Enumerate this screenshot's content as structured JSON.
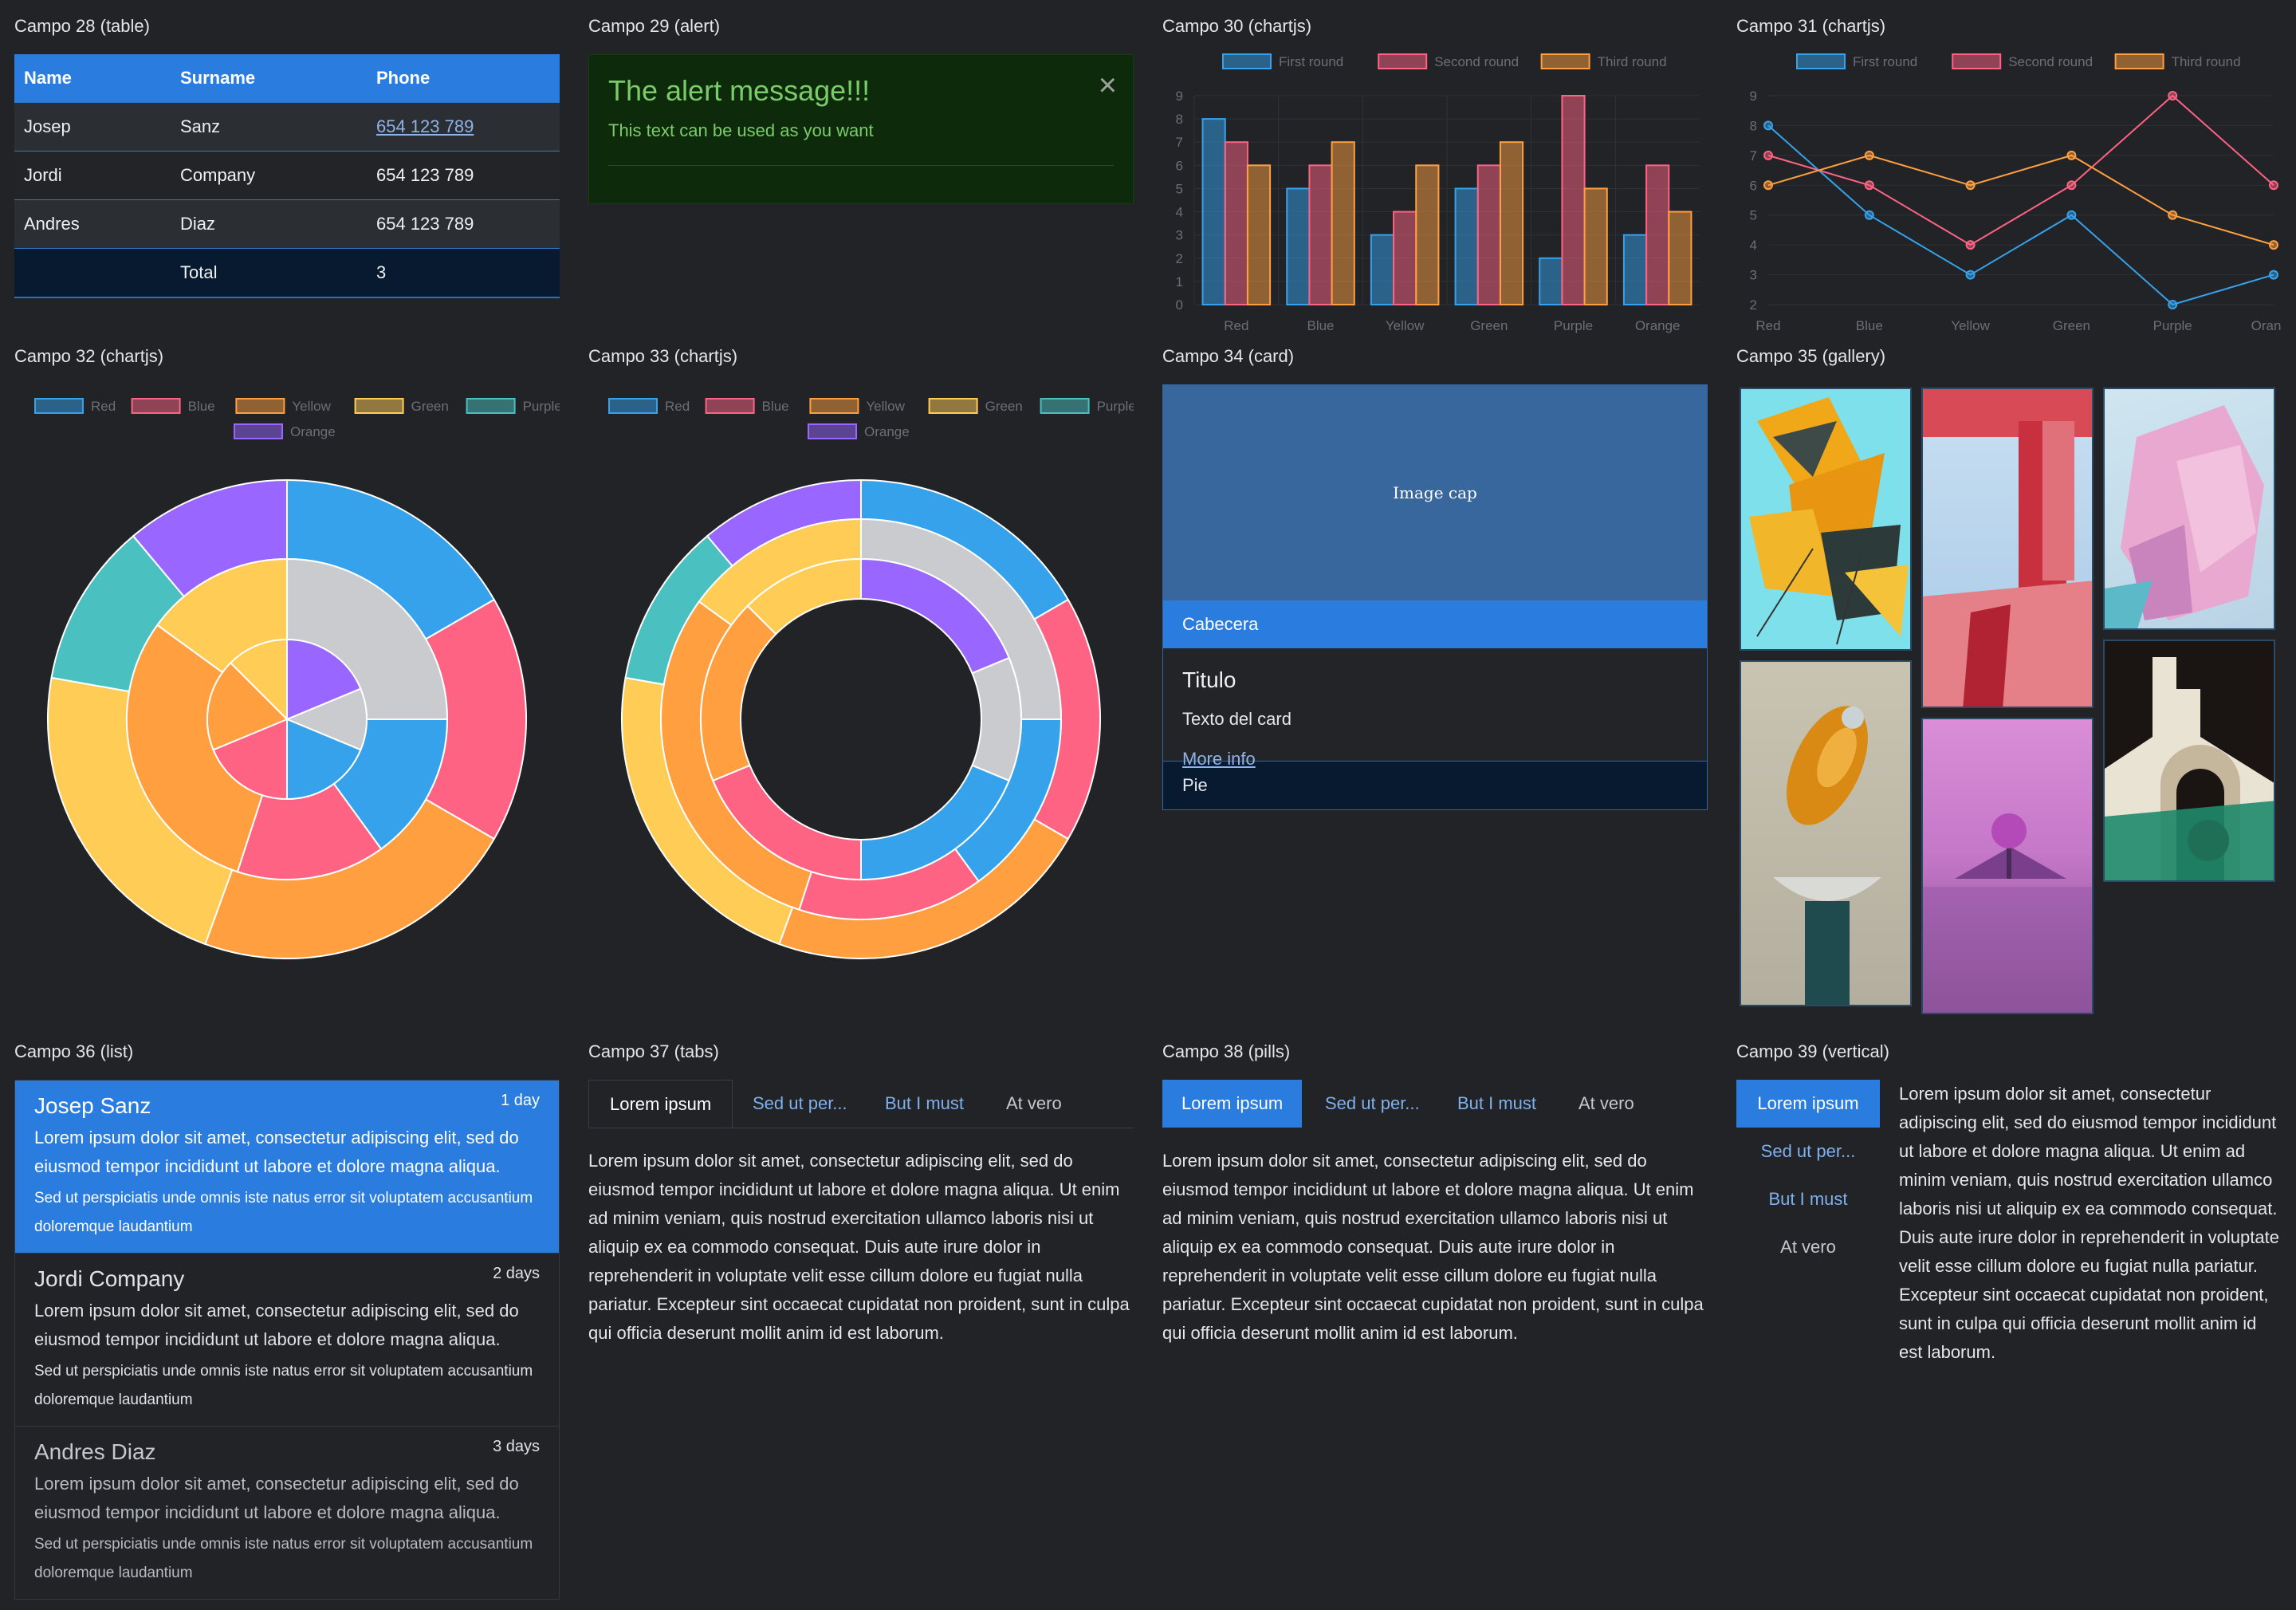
{
  "campo28": {
    "title": "Campo 28 (table)",
    "headers": [
      "Name",
      "Surname",
      "Phone"
    ],
    "rows": [
      {
        "name": "Josep",
        "surname": "Sanz",
        "phone": "654 123 789"
      },
      {
        "name": "Jordi",
        "surname": "Company",
        "phone": "654 123 789"
      },
      {
        "name": "Andres",
        "surname": "Diaz",
        "phone": "654 123 789"
      }
    ],
    "total_label": "Total",
    "total_value": "3"
  },
  "campo29": {
    "title": "Campo 29 (alert)",
    "heading": "The alert message!!!",
    "text": "This text can be used as you want",
    "close": "×"
  },
  "campo30": {
    "title": "Campo 30 (chartjs)",
    "chart_data": {
      "type": "bar",
      "categories": [
        "Red",
        "Blue",
        "Yellow",
        "Green",
        "Purple",
        "Orange"
      ],
      "series": [
        {
          "name": "First round",
          "values": [
            8,
            5,
            3,
            5,
            2,
            3
          ],
          "color": "#36a2eb"
        },
        {
          "name": "Second round",
          "values": [
            7,
            6,
            4,
            6,
            9,
            6
          ],
          "color": "#ff6384"
        },
        {
          "name": "Third round",
          "values": [
            6,
            7,
            6,
            7,
            5,
            4
          ],
          "color": "#ff9f40"
        }
      ],
      "ylim": [
        0,
        9
      ],
      "yticks": [
        0,
        1,
        2,
        3,
        4,
        5,
        6,
        7,
        8,
        9
      ],
      "grid": true,
      "legend": "top"
    }
  },
  "campo31": {
    "title": "Campo 31 (chartjs)",
    "chart_data": {
      "type": "line",
      "categories": [
        "Red",
        "Blue",
        "Yellow",
        "Green",
        "Purple",
        "Orange"
      ],
      "series": [
        {
          "name": "First round",
          "values": [
            8,
            5,
            3,
            5,
            2,
            3
          ],
          "color": "#36a2eb"
        },
        {
          "name": "Second round",
          "values": [
            7,
            6,
            4,
            6,
            9,
            6
          ],
          "color": "#ff6384"
        },
        {
          "name": "Third round",
          "values": [
            6,
            7,
            6,
            7,
            5,
            4
          ],
          "color": "#ff9f40"
        }
      ],
      "ylim": [
        2,
        9
      ],
      "yticks": [
        2,
        3,
        4,
        5,
        6,
        7,
        8,
        9
      ],
      "grid": true,
      "legend": "top"
    }
  },
  "campo32": {
    "title": "Campo 32 (chartjs)",
    "chart_data": {
      "type": "pie",
      "labels": [
        "Red",
        "Blue",
        "Yellow",
        "Green",
        "Purple",
        "Orange"
      ],
      "legend": "top",
      "rings": [
        {
          "values": [
            3,
            3,
            4,
            4,
            2,
            2
          ],
          "colors": [
            "#36a2eb",
            "#ff6384",
            "#ff9f40",
            "#ffcd56",
            "#4bc0c0",
            "#9966ff"
          ]
        },
        {
          "values": [
            5,
            3,
            3,
            6,
            3,
            0
          ],
          "colors": [
            "#c9cbcf",
            "#36a2eb",
            "#ff6384",
            "#ff9f40",
            "#ffcd56",
            "#4bc0c0"
          ]
        },
        {
          "values": [
            3,
            2,
            3,
            3,
            3,
            2
          ],
          "colors": [
            "#9966ff",
            "#c9cbcf",
            "#36a2eb",
            "#ff6384",
            "#ff9f40",
            "#ffcd56"
          ]
        }
      ]
    }
  },
  "campo33": {
    "title": "Campo 33 (chartjs)",
    "chart_data": {
      "type": "pie",
      "labels": [
        "Red",
        "Blue",
        "Yellow",
        "Green",
        "Purple",
        "Orange"
      ],
      "legend": "top",
      "rings": [
        {
          "values": [
            3,
            3,
            4,
            4,
            2,
            2
          ],
          "colors": [
            "#36a2eb",
            "#ff6384",
            "#ff9f40",
            "#ffcd56",
            "#4bc0c0",
            "#9966ff"
          ]
        },
        {
          "values": [
            5,
            3,
            3,
            6,
            3,
            0
          ],
          "colors": [
            "#c9cbcf",
            "#36a2eb",
            "#ff6384",
            "#ff9f40",
            "#ffcd56",
            "#4bc0c0"
          ]
        },
        {
          "values": [
            3,
            2,
            3,
            3,
            3,
            2
          ],
          "colors": [
            "#9966ff",
            "#c9cbcf",
            "#36a2eb",
            "#ff6384",
            "#ff9f40",
            "#ffcd56"
          ]
        }
      ]
    }
  },
  "campo34": {
    "title": "Campo 34 (card)",
    "image_cap": "Image cap",
    "header": "Cabecera",
    "card_title": "Titulo",
    "text": "Texto del card",
    "link": "More info",
    "footer": "Pie"
  },
  "campo35": {
    "title": "Campo 35 (gallery)",
    "images": [
      "abstract-yellow-shards",
      "red-staircase-architecture",
      "pink-crystal-cluster",
      "golden-capsule-sculpture",
      "pink-tree-lake",
      "white-arches-green-sphere"
    ]
  },
  "campo36": {
    "title": "Campo 36 (list)",
    "items": [
      {
        "name": "Josep Sanz",
        "date": "1 day",
        "p": "Lorem ipsum dolor sit amet, consectetur adipiscing elit, sed do eiusmod tempor incididunt ut labore et dolore magna aliqua.",
        "s": "Sed ut perspiciatis unde omnis iste natus error sit voluptatem accusantium doloremque laudantium"
      },
      {
        "name": "Jordi Company",
        "date": "2 days",
        "p": "Lorem ipsum dolor sit amet, consectetur adipiscing elit, sed do eiusmod tempor incididunt ut labore et dolore magna aliqua.",
        "s": "Sed ut perspiciatis unde omnis iste natus error sit voluptatem accusantium doloremque laudantium"
      },
      {
        "name": "Andres Diaz",
        "date": "3 days",
        "p": "Lorem ipsum dolor sit amet, consectetur adipiscing elit, sed do eiusmod tempor incididunt ut labore et dolore magna aliqua.",
        "s": "Sed ut perspiciatis unde omnis iste natus error sit voluptatem accusantium doloremque laudantium"
      }
    ]
  },
  "campo37": {
    "title": "Campo 37 (tabs)",
    "tabs": [
      "Lorem ipsum",
      "Sed ut per...",
      "But I must",
      "At vero"
    ],
    "content": "Lorem ipsum dolor sit amet, consectetur adipiscing elit, sed do eiusmod tempor incididunt ut labore et dolore magna aliqua. Ut enim ad minim veniam, quis nostrud exercitation ullamco laboris nisi ut aliquip ex ea commodo consequat. Duis aute irure dolor in reprehenderit in voluptate velit esse cillum dolore eu fugiat nulla pariatur. Excepteur sint occaecat cupidatat non proident, sunt in culpa qui officia deserunt mollit anim id est laborum."
  },
  "campo38": {
    "title": "Campo 38 (pills)",
    "tabs": [
      "Lorem ipsum",
      "Sed ut per...",
      "But I must",
      "At vero"
    ],
    "content": "Lorem ipsum dolor sit amet, consectetur adipiscing elit, sed do eiusmod tempor incididunt ut labore et dolore magna aliqua. Ut enim ad minim veniam, quis nostrud exercitation ullamco laboris nisi ut aliquip ex ea commodo consequat. Duis aute irure dolor in reprehenderit in voluptate velit esse cillum dolore eu fugiat nulla pariatur. Excepteur sint occaecat cupidatat non proident, sunt in culpa qui officia deserunt mollit anim id est laborum."
  },
  "campo39": {
    "title": "Campo 39 (vertical)",
    "tabs": [
      "Lorem ipsum",
      "Sed ut per...",
      "But I must",
      "At vero"
    ],
    "content": "Lorem ipsum dolor sit amet, consectetur adipiscing elit, sed do eiusmod tempor incididunt ut labore et dolore magna aliqua. Ut enim ad minim veniam, quis nostrud exercitation ullamco laboris nisi ut aliquip ex ea commodo consequat. Duis aute irure dolor in reprehenderit in voluptate velit esse cillum dolore eu fugiat nulla pariatur. Excepteur sint occaecat cupidatat non proident, sunt in culpa qui officia deserunt mollit anim id est laborum."
  },
  "colors": {
    "primary": "#2a7ddf",
    "background": "#212326",
    "link": "#8fb3e8",
    "alert_text": "#7ccb6b"
  }
}
